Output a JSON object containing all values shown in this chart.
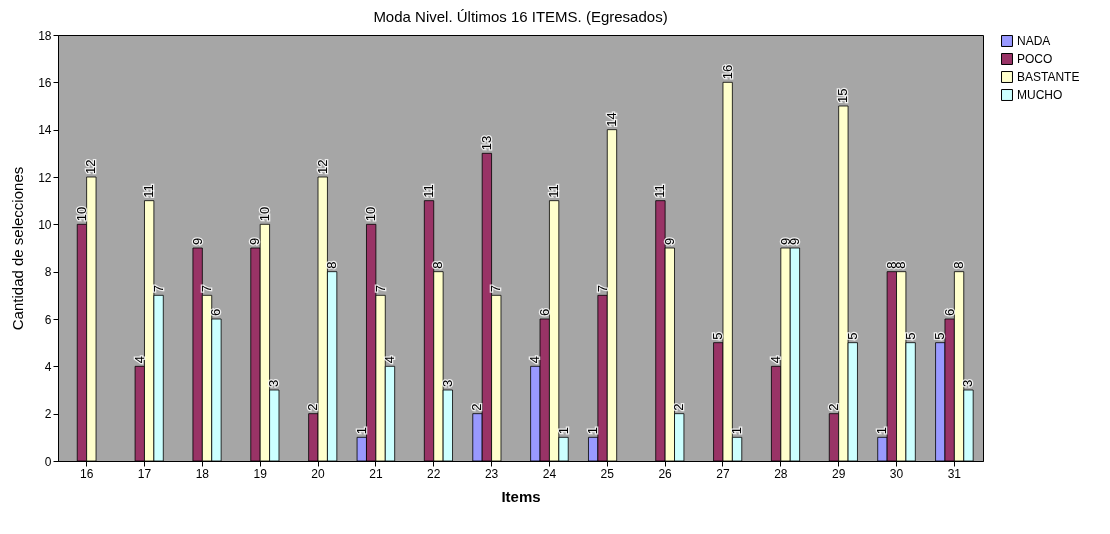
{
  "chart_data": {
    "type": "bar",
    "title": "Moda Nivel. Últimos 16 ITEMS. (Egresados)",
    "xlabel": "Items",
    "ylabel": "Cantidad de selecciones",
    "categories": [
      "16",
      "17",
      "18",
      "19",
      "20",
      "21",
      "22",
      "23",
      "24",
      "25",
      "26",
      "27",
      "28",
      "29",
      "30",
      "31"
    ],
    "series": [
      {
        "name": "NADA",
        "color": "#9999ff",
        "values": [
          null,
          null,
          null,
          null,
          null,
          1,
          null,
          2,
          4,
          1,
          null,
          null,
          null,
          null,
          1,
          5
        ]
      },
      {
        "name": "POCO",
        "color": "#993366",
        "values": [
          10,
          4,
          9,
          9,
          2,
          10,
          11,
          13,
          6,
          7,
          11,
          5,
          4,
          2,
          8,
          6
        ]
      },
      {
        "name": "BASTANTE",
        "color": "#ffffcc",
        "values": [
          12,
          11,
          7,
          10,
          12,
          7,
          8,
          7,
          11,
          14,
          9,
          16,
          9,
          15,
          8,
          8
        ]
      },
      {
        "name": "MUCHO",
        "color": "#ccffff",
        "values": [
          null,
          7,
          6,
          3,
          8,
          4,
          3,
          null,
          1,
          null,
          2,
          1,
          9,
          5,
          5,
          3
        ]
      }
    ],
    "ylim": [
      0,
      18
    ],
    "yticks": [
      0,
      2,
      4,
      6,
      8,
      10,
      12,
      14,
      16,
      18
    ],
    "grid": false,
    "legend": "right",
    "data_labels": true
  }
}
